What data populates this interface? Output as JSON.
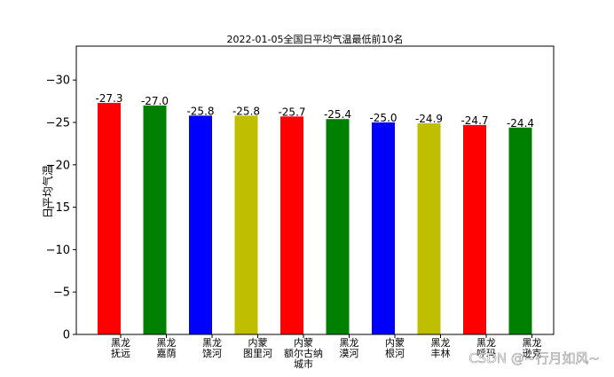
{
  "chart_data": {
    "type": "bar",
    "title": "2022-01-05全国日平均气温最低前10名",
    "xlabel": "",
    "ylabel": "日平均气温",
    "ylim": [
      0,
      -34
    ],
    "inverted_y": true,
    "yticks": [
      0,
      -5,
      -10,
      -15,
      -20,
      -25,
      -30
    ],
    "ytick_labels": [
      "0",
      "−5",
      "−10",
      "−15",
      "−20",
      "−25",
      "−30"
    ],
    "grid": false,
    "categories": [
      [
        "黑龙",
        "抚远"
      ],
      [
        "黑龙",
        "嘉荫"
      ],
      [
        "黑龙",
        "饶河"
      ],
      [
        "内蒙",
        "图里河"
      ],
      [
        "内蒙",
        "额尔古纳",
        "城市"
      ],
      [
        "黑龙",
        "漠河"
      ],
      [
        "内蒙",
        "根河"
      ],
      [
        "黑龙",
        "丰林"
      ],
      [
        "黑龙",
        "呼玛"
      ],
      [
        "黑龙",
        "逊克"
      ]
    ],
    "values": [
      -27.3,
      -27.0,
      -25.8,
      -25.8,
      -25.7,
      -25.4,
      -25.0,
      -24.9,
      -24.7,
      -24.4
    ],
    "value_labels": [
      "-27.3",
      "-27.0",
      "-25.8",
      "-25.8",
      "-25.7",
      "-25.4",
      "-25.0",
      "-24.9",
      "-24.7",
      "-24.4"
    ],
    "colors": [
      "#ff0000",
      "#008000",
      "#0000ff",
      "#bfbf00",
      "#ff0000",
      "#008000",
      "#0000ff",
      "#bfbf00",
      "#ff0000",
      "#008000"
    ]
  },
  "watermark": "CSDN @~行月如风~"
}
